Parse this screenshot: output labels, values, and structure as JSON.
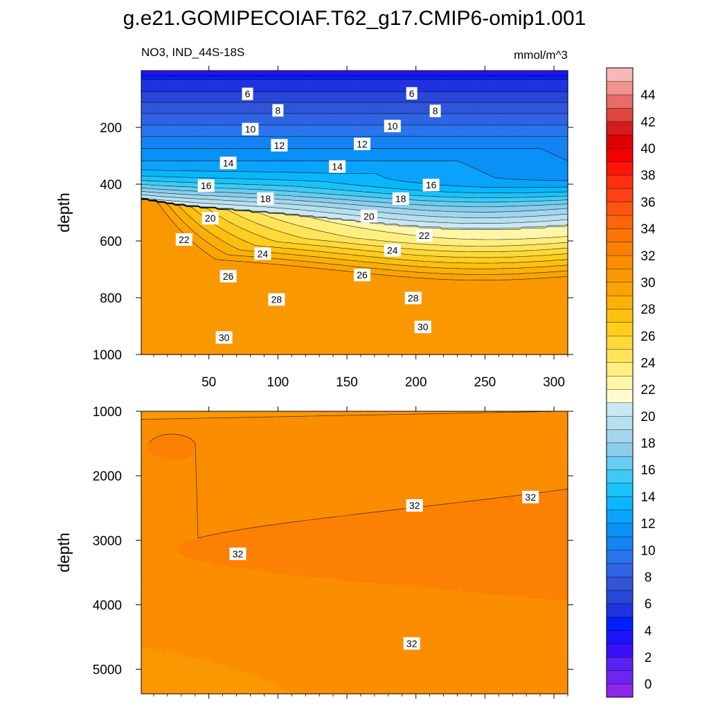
{
  "title": "g.e21.GOMIPECOIAF.T62_g17.CMIP6-omip1.001",
  "variable_label": "NO3, IND_44S-18S",
  "units_label": "mmol/m^3",
  "chart_data": [
    {
      "type": "heatmap",
      "panel": "upper",
      "ylabel": "depth",
      "xlim": [
        1,
        310
      ],
      "ylim": [
        1000,
        0
      ],
      "x_ticks": [
        50,
        100,
        150,
        200,
        250,
        300
      ],
      "y_ticks": [
        200,
        400,
        600,
        800,
        1000
      ],
      "contour_interval": 1,
      "contour_labels": [
        {
          "value": 6,
          "x": 78,
          "y": 82
        },
        {
          "value": 6,
          "x": 197,
          "y": 80
        },
        {
          "value": 8,
          "x": 100,
          "y": 140
        },
        {
          "value": 8,
          "x": 214,
          "y": 142
        },
        {
          "value": 10,
          "x": 80,
          "y": 206
        },
        {
          "value": 10,
          "x": 183,
          "y": 195
        },
        {
          "value": 12,
          "x": 101,
          "y": 263
        },
        {
          "value": 12,
          "x": 161,
          "y": 258
        },
        {
          "value": 14,
          "x": 64,
          "y": 325
        },
        {
          "value": 14,
          "x": 143,
          "y": 338
        },
        {
          "value": 16,
          "x": 48,
          "y": 405
        },
        {
          "value": 16,
          "x": 211,
          "y": 403
        },
        {
          "value": 18,
          "x": 91,
          "y": 451
        },
        {
          "value": 18,
          "x": 189,
          "y": 451
        },
        {
          "value": 20,
          "x": 51,
          "y": 520
        },
        {
          "value": 20,
          "x": 166,
          "y": 513
        },
        {
          "value": 22,
          "x": 32,
          "y": 595
        },
        {
          "value": 22,
          "x": 206,
          "y": 580
        },
        {
          "value": 24,
          "x": 89,
          "y": 645
        },
        {
          "value": 24,
          "x": 183,
          "y": 633
        },
        {
          "value": 26,
          "x": 64,
          "y": 724
        },
        {
          "value": 26,
          "x": 161,
          "y": 720
        },
        {
          "value": 28,
          "x": 99,
          "y": 806
        },
        {
          "value": 28,
          "x": 198,
          "y": 801
        },
        {
          "value": 30,
          "x": 61,
          "y": 940
        },
        {
          "value": 30,
          "x": 205,
          "y": 903
        }
      ]
    },
    {
      "type": "heatmap",
      "panel": "lower",
      "ylabel": "depth",
      "xlim": [
        1,
        310
      ],
      "ylim": [
        5380,
        1000
      ],
      "y_ticks": [
        1000,
        2000,
        3000,
        4000,
        5000
      ],
      "contour_interval": 1,
      "contour_labels": [
        {
          "value": 32,
          "x": 199,
          "y": 2460
        },
        {
          "value": 32,
          "x": 283,
          "y": 2330
        },
        {
          "value": 32,
          "x": 71,
          "y": 3210
        },
        {
          "value": 32,
          "x": 197,
          "y": 4600
        }
      ]
    }
  ],
  "colorbar": {
    "labels": [
      "0",
      "2",
      "4",
      "6",
      "8",
      "10",
      "12",
      "14",
      "16",
      "18",
      "20",
      "22",
      "24",
      "26",
      "28",
      "30",
      "32",
      "34",
      "36",
      "38",
      "40",
      "42",
      "44"
    ],
    "colors": [
      "#8d25ea",
      "#6f24f0",
      "#5b22f4",
      "#3b10f6",
      "#1d14fa",
      "#0020ff",
      "#2033e0",
      "#2846d8",
      "#3055d8",
      "#2f64e4",
      "#2a74ef",
      "#1683f3",
      "#0a91f6",
      "#0aa3fb",
      "#0ab6fd",
      "#1ac2fa",
      "#3fcaf5",
      "#68cdf0",
      "#8acdeb",
      "#a3d6ed",
      "#b6dfef",
      "#c9e8f3",
      "#fffccf",
      "#fff6a8",
      "#ffef80",
      "#ffe45a",
      "#ffd93a",
      "#ffcd20",
      "#fdbf10",
      "#fbb008",
      "#f9a404",
      "#fa9802",
      "#fb8d01",
      "#fb8004",
      "#fb7406",
      "#fc650a",
      "#fd5410",
      "#ff4216",
      "#ff2f12",
      "#ff160a",
      "#f40000",
      "#de0000",
      "#d41a1a",
      "#e0453d",
      "#e76b66",
      "#ef9490",
      "#f8b8b8"
    ]
  }
}
